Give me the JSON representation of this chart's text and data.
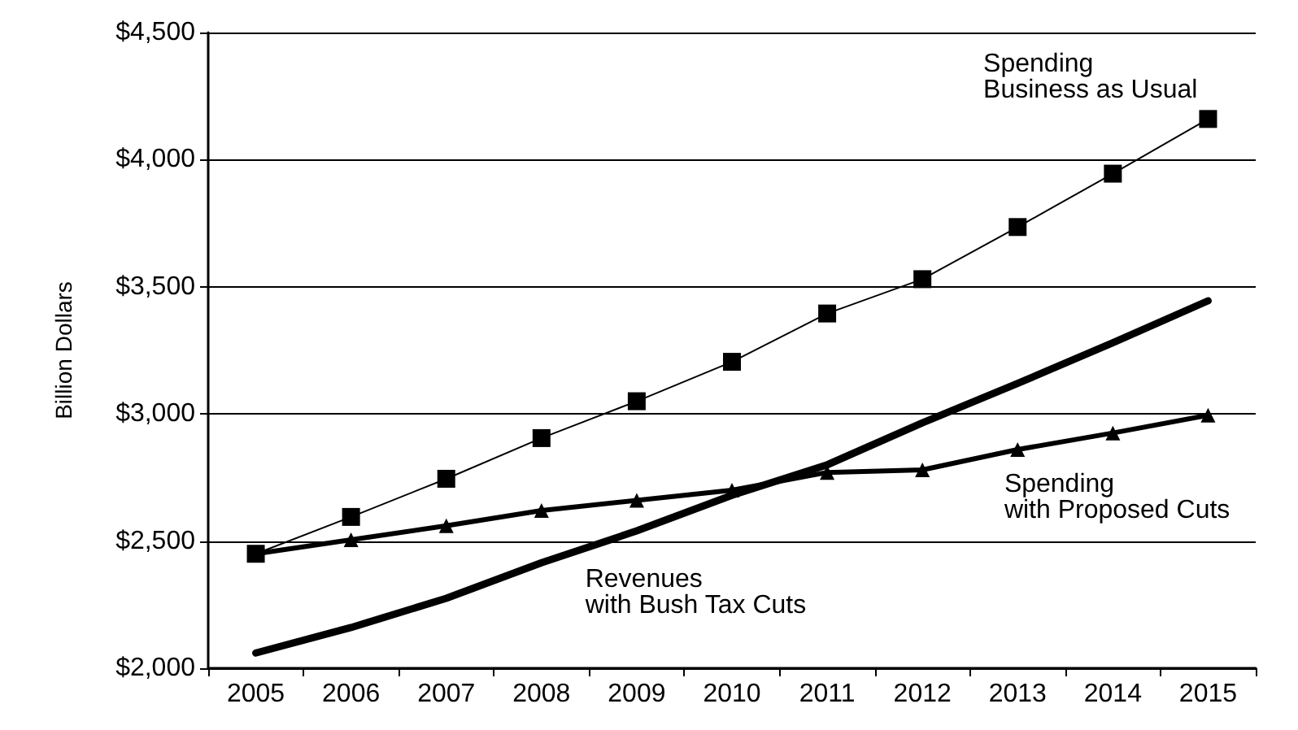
{
  "chart_data": {
    "type": "line",
    "ylabel": "Billion Dollars",
    "categories": [
      "2005",
      "2006",
      "2007",
      "2008",
      "2009",
      "2010",
      "2011",
      "2012",
      "2013",
      "2014",
      "2015"
    ],
    "series": [
      {
        "name": "Spending\nBusiness as Usual",
        "color": "#000000",
        "marker": "square",
        "values": [
          2450,
          2595,
          2745,
          2905,
          3050,
          3205,
          3395,
          3530,
          3735,
          3945,
          4160
        ]
      },
      {
        "name": "Spending\nwith Proposed Cuts",
        "color": "#000000",
        "marker": "triangle",
        "values": [
          2450,
          2505,
          2560,
          2620,
          2660,
          2700,
          2770,
          2780,
          2860,
          2925,
          2995
        ]
      },
      {
        "name": "Revenues\nwith Bush Tax Cuts",
        "color": "#000000",
        "marker": "none",
        "values": [
          2060,
          2160,
          2275,
          2415,
          2540,
          2680,
          2800,
          2965,
          3120,
          3280,
          3445
        ]
      }
    ],
    "ylim": [
      2000,
      4500
    ],
    "yticks": [
      {
        "value": 2000,
        "label": "$2,000"
      },
      {
        "value": 2500,
        "label": "$2,500"
      },
      {
        "value": 3000,
        "label": "$3,000"
      },
      {
        "value": 3500,
        "label": "$3,500"
      },
      {
        "value": 4000,
        "label": "$4,000"
      },
      {
        "value": 4500,
        "label": "$4,500"
      }
    ],
    "grid": "y",
    "legend": false
  }
}
